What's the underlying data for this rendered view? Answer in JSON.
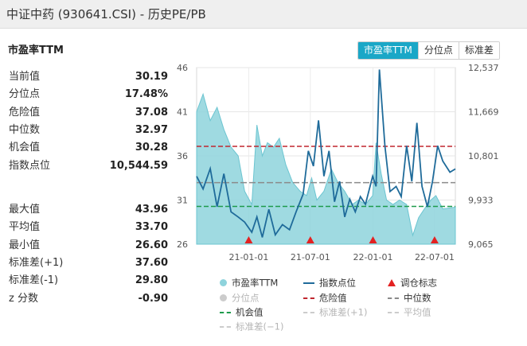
{
  "window": {
    "title": "中证中药 (930641.CSI) - 历史PE/PB"
  },
  "section_title": "市盈率TTM",
  "tabs": [
    {
      "label": "市盈率TTM",
      "active": true
    },
    {
      "label": "分位点",
      "active": false
    },
    {
      "label": "标准差",
      "active": false
    }
  ],
  "stats_top": [
    {
      "label": "当前值",
      "value": "30.19"
    },
    {
      "label": "分位点",
      "value": "17.48%"
    },
    {
      "label": "危险值",
      "value": "37.08"
    },
    {
      "label": "中位数",
      "value": "32.97"
    },
    {
      "label": "机会值",
      "value": "30.28"
    },
    {
      "label": "指数点位",
      "value": "10,544.59"
    }
  ],
  "stats_bottom": [
    {
      "label": "最大值",
      "value": "43.96"
    },
    {
      "label": "平均值",
      "value": "33.70"
    },
    {
      "label": "最小值",
      "value": "26.60"
    },
    {
      "label": "标准差(+1)",
      "value": "37.60"
    },
    {
      "label": "标准差(-1)",
      "value": "29.80"
    },
    {
      "label": "z 分数",
      "value": "-0.90"
    }
  ],
  "colors": {
    "pe_area": "#8ed3dc",
    "index_line": "#1f6b9a",
    "danger": "#c0262f",
    "median": "#8a8a8a",
    "opportunity": "#1e9b4c",
    "marker": "#e32222",
    "accent": "#1aa7c7"
  },
  "legend": [
    {
      "label": "市盈率TTM",
      "symbol": "dot",
      "color": "#8ed3dc",
      "dim": false
    },
    {
      "label": "指数点位",
      "symbol": "line",
      "color": "#1f6b9a",
      "dim": false
    },
    {
      "label": "调仓标志",
      "symbol": "triangle",
      "color": "#e32222",
      "dim": false
    },
    {
      "label": "分位点",
      "symbol": "dot",
      "color": "#cccccc",
      "dim": true
    },
    {
      "label": "危险值",
      "symbol": "dash",
      "color": "#c0262f",
      "dim": false
    },
    {
      "label": "中位数",
      "symbol": "dash",
      "color": "#8a8a8a",
      "dim": false
    },
    {
      "label": "机会值",
      "symbol": "dash",
      "color": "#1e9b4c",
      "dim": false
    },
    {
      "label": "标准差(+1)",
      "symbol": "dash",
      "color": "#cccccc",
      "dim": true
    },
    {
      "label": "平均值",
      "symbol": "dash",
      "color": "#cccccc",
      "dim": true
    },
    {
      "label": "标准差(−1)",
      "symbol": "dash",
      "color": "#cccccc",
      "dim": true
    }
  ],
  "chart_data": {
    "type": "area",
    "x_tick_labels": [
      "21-01-01",
      "21-07-01",
      "22-01-01",
      "22-07-01"
    ],
    "x_range": [
      "2020-08-01",
      "2022-08-31"
    ],
    "left_axis": {
      "ticks": [
        "46",
        "41",
        "36",
        "31",
        "26"
      ],
      "range": [
        26,
        46
      ]
    },
    "right_axis": {
      "ticks": [
        "12,537",
        "11,669",
        "10,801",
        "9,933",
        "9,065"
      ],
      "range": [
        9065,
        12537
      ]
    },
    "reference_lines": {
      "danger": 37.08,
      "median": 32.97,
      "opportunity": 30.28
    },
    "pe_series": [
      [
        "2020-08-01",
        41.0
      ],
      [
        "2020-08-20",
        43.0
      ],
      [
        "2020-09-10",
        40.0
      ],
      [
        "2020-09-30",
        41.5
      ],
      [
        "2020-10-20",
        39.0
      ],
      [
        "2020-11-10",
        37.0
      ],
      [
        "2020-12-01",
        36.0
      ],
      [
        "2020-12-20",
        32.0
      ],
      [
        "2021-01-10",
        30.5
      ],
      [
        "2021-01-25",
        39.5
      ],
      [
        "2021-02-10",
        36.0
      ],
      [
        "2021-02-25",
        37.5
      ],
      [
        "2021-03-15",
        37.0
      ],
      [
        "2021-04-01",
        38.0
      ],
      [
        "2021-04-20",
        35.0
      ],
      [
        "2021-05-10",
        33.0
      ],
      [
        "2021-06-01",
        32.0
      ],
      [
        "2021-06-20",
        31.5
      ],
      [
        "2021-07-05",
        33.5
      ],
      [
        "2021-07-20",
        31.0
      ],
      [
        "2021-08-10",
        32.0
      ],
      [
        "2021-09-01",
        34.5
      ],
      [
        "2021-09-20",
        33.0
      ],
      [
        "2021-10-10",
        32.0
      ],
      [
        "2021-11-01",
        30.5
      ],
      [
        "2021-11-20",
        31.0
      ],
      [
        "2021-12-10",
        30.5
      ],
      [
        "2021-12-31",
        31.5
      ],
      [
        "2022-01-10",
        37.5
      ],
      [
        "2022-01-25",
        34.0
      ],
      [
        "2022-02-10",
        31.0
      ],
      [
        "2022-03-01",
        30.5
      ],
      [
        "2022-03-20",
        31.0
      ],
      [
        "2022-04-10",
        30.5
      ],
      [
        "2022-04-28",
        27.0
      ],
      [
        "2022-05-15",
        29.0
      ],
      [
        "2022-06-01",
        30.0
      ],
      [
        "2022-06-20",
        31.0
      ],
      [
        "2022-07-05",
        31.5
      ],
      [
        "2022-07-25",
        30.0
      ],
      [
        "2022-08-31",
        30.2
      ]
    ],
    "index_series": [
      [
        "2020-08-01",
        10400
      ],
      [
        "2020-08-20",
        10150
      ],
      [
        "2020-09-10",
        10550
      ],
      [
        "2020-09-30",
        9800
      ],
      [
        "2020-10-20",
        10450
      ],
      [
        "2020-11-10",
        9700
      ],
      [
        "2020-12-01",
        9600
      ],
      [
        "2020-12-20",
        9500
      ],
      [
        "2021-01-10",
        9300
      ],
      [
        "2021-01-25",
        9600
      ],
      [
        "2021-02-10",
        9200
      ],
      [
        "2021-03-01",
        9750
      ],
      [
        "2021-03-20",
        9250
      ],
      [
        "2021-04-10",
        9450
      ],
      [
        "2021-05-01",
        9350
      ],
      [
        "2021-05-20",
        9700
      ],
      [
        "2021-06-10",
        10050
      ],
      [
        "2021-06-25",
        10900
      ],
      [
        "2021-07-10",
        10600
      ],
      [
        "2021-07-25",
        11500
      ],
      [
        "2021-08-10",
        10400
      ],
      [
        "2021-08-25",
        10900
      ],
      [
        "2021-09-10",
        9900
      ],
      [
        "2021-09-25",
        10300
      ],
      [
        "2021-10-10",
        9600
      ],
      [
        "2021-10-25",
        9950
      ],
      [
        "2021-11-10",
        9700
      ],
      [
        "2021-11-25",
        10000
      ],
      [
        "2021-12-10",
        9850
      ],
      [
        "2021-12-31",
        10400
      ],
      [
        "2022-01-10",
        10200
      ],
      [
        "2022-01-20",
        12500
      ],
      [
        "2022-02-05",
        11000
      ],
      [
        "2022-02-20",
        10100
      ],
      [
        "2022-03-10",
        10200
      ],
      [
        "2022-03-25",
        10000
      ],
      [
        "2022-04-10",
        11000
      ],
      [
        "2022-04-25",
        10300
      ],
      [
        "2022-05-10",
        11450
      ],
      [
        "2022-05-25",
        10200
      ],
      [
        "2022-06-10",
        9800
      ],
      [
        "2022-06-25",
        10300
      ],
      [
        "2022-07-10",
        11000
      ],
      [
        "2022-07-25",
        10700
      ],
      [
        "2022-08-15",
        10480
      ],
      [
        "2022-08-31",
        10545
      ]
    ],
    "rebalance_markers": [
      "2021-01-01",
      "2021-07-01",
      "2022-01-01",
      "2022-07-01"
    ],
    "grid": true,
    "legend_position": "bottom"
  }
}
